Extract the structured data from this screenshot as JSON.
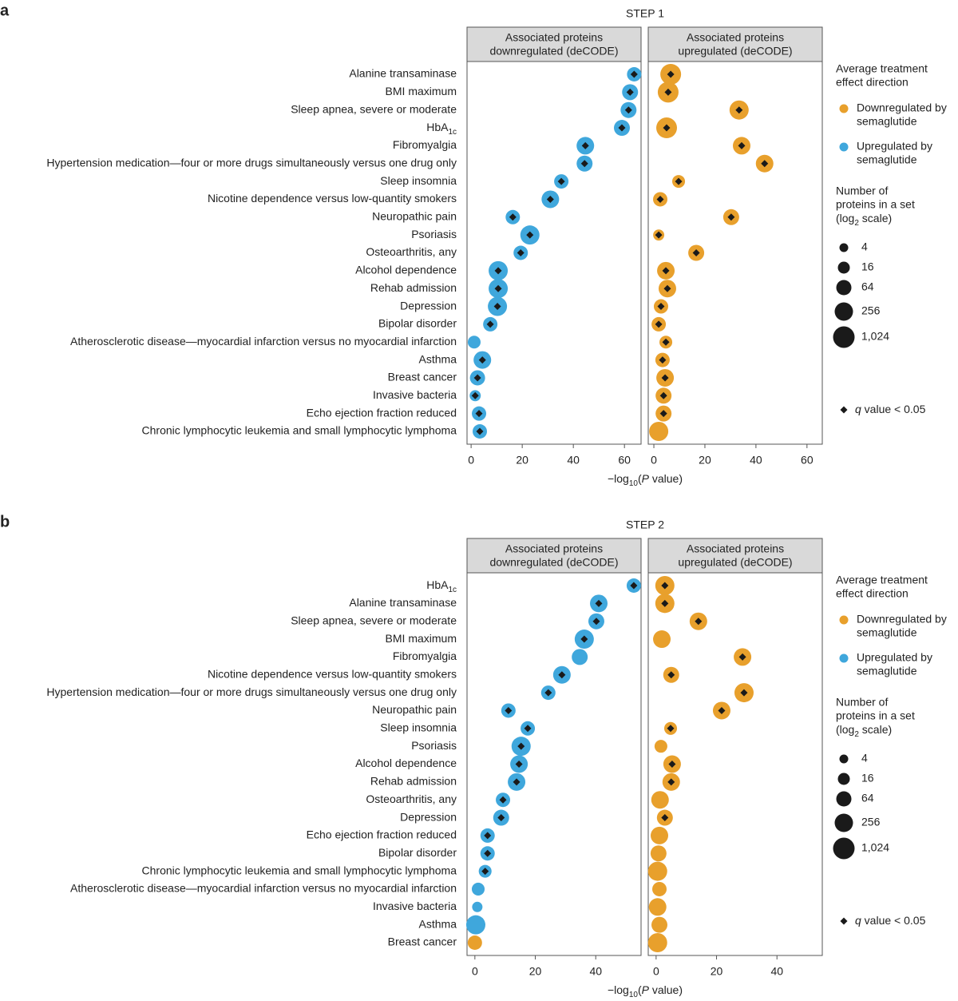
{
  "chart_data": [
    {
      "type": "dot",
      "panel": "a",
      "title": "STEP 1",
      "categories": [
        "Alanine transaminase",
        "BMI maximum",
        "Sleep apnea, severe or moderate",
        [
          "HbA",
          {
            "sub": "1c"
          }
        ],
        "Fibromyalgia",
        "Hypertension medication—four or more drugs simultaneously versus one drug only",
        "Sleep insomnia",
        "Nicotine dependence versus low-quantity smokers",
        "Neuropathic pain",
        "Psoriasis",
        "Osteoarthritis, any",
        "Alcohol dependence",
        "Rehab admission",
        "Depression",
        "Bipolar disorder",
        "Atherosclerotic disease—myocardial infarction versus no myocardial infarction",
        "Asthma",
        "Breast cancer",
        "Invasive bacteria",
        "Echo ejection fraction reduced",
        "Chronic lymphocytic leukemia and small lymphocytic lymphoma"
      ],
      "xlabel": [
        "−log",
        {
          "sub": "10"
        },
        "(",
        {
          "italic": "P"
        },
        " value)"
      ],
      "facets": [
        {
          "title": [
            "Associated proteins",
            "downregulated (deCODE)"
          ],
          "xlim": [
            -1.6,
            66.5
          ],
          "xticks": [
            0,
            20,
            40,
            60
          ],
          "values": [
            63.8,
            62.2,
            61.6,
            59,
            44.7,
            44.4,
            35.3,
            31,
            16.3,
            23,
            19.4,
            10.6,
            10.6,
            10.3,
            7.5,
            1.2,
            4.4,
            2.5,
            1.6,
            3.1,
            3.4
          ],
          "sizes": [
            45,
            90,
            90,
            90,
            181,
            90,
            45,
            181,
            45,
            362,
            45,
            362,
            362,
            362,
            45,
            23,
            181,
            64,
            11,
            45,
            45
          ],
          "colors": [
            "#3fa7dc",
            "#3fa7dc",
            "#3fa7dc",
            "#3fa7dc",
            "#3fa7dc",
            "#3fa7dc",
            "#3fa7dc",
            "#3fa7dc",
            "#3fa7dc",
            "#3fa7dc",
            "#3fa7dc",
            "#3fa7dc",
            "#3fa7dc",
            "#3fa7dc",
            "#3fa7dc",
            "#3fa7dc",
            "#3fa7dc",
            "#3fa7dc",
            "#3fa7dc",
            "#3fa7dc",
            "#3fa7dc"
          ],
          "q_significant": [
            true,
            true,
            true,
            true,
            true,
            true,
            true,
            true,
            true,
            true,
            true,
            true,
            true,
            true,
            true,
            false,
            true,
            true,
            true,
            true,
            true
          ]
        },
        {
          "title": [
            "Associated proteins",
            "upregulated (deCODE)"
          ],
          "xlim": [
            -2.2,
            66
          ],
          "xticks": [
            0,
            20,
            40,
            60
          ],
          "values": [
            6.6,
            5.6,
            33.4,
            5,
            34.4,
            43.4,
            9.7,
            2.5,
            30.3,
            1.9,
            16.6,
            4.7,
            5.3,
            2.8,
            1.9,
            4.7,
            3.4,
            4.4,
            3.8,
            3.8,
            1.9
          ],
          "sizes": [
            724,
            724,
            362,
            724,
            181,
            181,
            23,
            45,
            90,
            11,
            90,
            181,
            181,
            45,
            45,
            23,
            45,
            181,
            90,
            90,
            362
          ],
          "colors": [
            "#e8a02c",
            "#e8a02c",
            "#e8a02c",
            "#e8a02c",
            "#e8a02c",
            "#e8a02c",
            "#e8a02c",
            "#e8a02c",
            "#e8a02c",
            "#e8a02c",
            "#e8a02c",
            "#e8a02c",
            "#e8a02c",
            "#e8a02c",
            "#e8a02c",
            "#e8a02c",
            "#e8a02c",
            "#e8a02c",
            "#e8a02c",
            "#e8a02c",
            "#e8a02c"
          ],
          "q_significant": [
            true,
            true,
            true,
            true,
            true,
            true,
            true,
            true,
            true,
            true,
            true,
            true,
            true,
            true,
            true,
            true,
            true,
            true,
            true,
            true,
            false
          ]
        }
      ],
      "legend": {
        "title": [
          "Average treatment",
          "effect direction"
        ],
        "items": [
          {
            "name": [
              "Downregulated by",
              "semaglutide"
            ],
            "color": "#e8a02c"
          },
          {
            "name": [
              "Upregulated by",
              "semaglutide"
            ],
            "color": "#3fa7dc"
          }
        ],
        "size_title": [
          "Number of",
          "proteins in a set",
          [
            "(log",
            {
              "sub": "2"
            },
            " scale)"
          ]
        ],
        "sizes": [
          4,
          16,
          64,
          256,
          {
            "value": 1024,
            "label": "1,024"
          }
        ],
        "q_label": [
          {
            "italic": "q"
          },
          " value < 0.05"
        ]
      }
    },
    {
      "type": "dot",
      "panel": "b",
      "title": "STEP 2",
      "categories": [
        [
          "HbA",
          {
            "sub": "1c"
          }
        ],
        "Alanine transaminase",
        "Sleep apnea, severe or moderate",
        "BMI maximum",
        "Fibromyalgia",
        "Nicotine dependence versus low-quantity smokers",
        "Hypertension medication—four or more drugs simultaneously versus one drug only",
        "Neuropathic pain",
        "Sleep insomnia",
        "Psoriasis",
        "Alcohol dependence",
        "Rehab admission",
        "Osteoarthritis, any",
        "Depression",
        "Echo ejection fraction reduced",
        "Bipolar disorder",
        "Chronic lymphocytic leukemia and small lymphocytic lymphoma",
        "Atherosclerotic disease—myocardial infarction versus no myocardial infarction",
        "Invasive bacteria",
        "Asthma",
        "Breast cancer"
      ],
      "xlabel": [
        "−log",
        {
          "sub": "10"
        },
        "(",
        {
          "italic": "P"
        },
        " value)"
      ],
      "facets": [
        {
          "title": [
            "Associated proteins",
            "downregulated (deCODE)"
          ],
          "xlim": [
            -2.6,
            55
          ],
          "xticks": [
            0,
            20,
            40
          ],
          "values": [
            52.6,
            41,
            40.2,
            36.2,
            34.7,
            28.8,
            24.3,
            11.1,
            17.5,
            15.3,
            14.6,
            13.8,
            9.3,
            8.7,
            4.2,
            4.2,
            3.4,
            1.1,
            0.8,
            0.3,
            0
          ],
          "sizes": [
            45,
            181,
            90,
            362,
            90,
            181,
            45,
            45,
            45,
            362,
            181,
            181,
            45,
            90,
            45,
            45,
            23,
            23,
            8,
            362,
            45
          ],
          "colors": [
            "#3fa7dc",
            "#3fa7dc",
            "#3fa7dc",
            "#3fa7dc",
            "#3fa7dc",
            "#3fa7dc",
            "#3fa7dc",
            "#3fa7dc",
            "#3fa7dc",
            "#3fa7dc",
            "#3fa7dc",
            "#3fa7dc",
            "#3fa7dc",
            "#3fa7dc",
            "#3fa7dc",
            "#3fa7dc",
            "#3fa7dc",
            "#3fa7dc",
            "#3fa7dc",
            "#3fa7dc",
            "#e8a02c"
          ],
          "q_significant": [
            true,
            true,
            true,
            true,
            false,
            true,
            true,
            true,
            true,
            true,
            true,
            true,
            true,
            true,
            true,
            true,
            true,
            false,
            false,
            false,
            false
          ]
        },
        {
          "title": [
            "Associated proteins",
            "upregulated (deCODE)"
          ],
          "xlim": [
            -2.6,
            55
          ],
          "xticks": [
            0,
            20,
            40
          ],
          "values": [
            2.9,
            2.9,
            14,
            1.9,
            28.6,
            5,
            29.1,
            21.7,
            4.8,
            1.6,
            5.3,
            5,
            1.3,
            2.9,
            1.1,
            0.8,
            0.5,
            1.1,
            0.5,
            1.1,
            0.5
          ],
          "sizes": [
            362,
            362,
            181,
            181,
            181,
            90,
            362,
            181,
            23,
            23,
            181,
            181,
            181,
            90,
            181,
            90,
            362,
            45,
            181,
            90,
            362
          ],
          "colors": [
            "#e8a02c",
            "#e8a02c",
            "#e8a02c",
            "#e8a02c",
            "#e8a02c",
            "#e8a02c",
            "#e8a02c",
            "#e8a02c",
            "#e8a02c",
            "#e8a02c",
            "#e8a02c",
            "#e8a02c",
            "#e8a02c",
            "#e8a02c",
            "#e8a02c",
            "#e8a02c",
            "#e8a02c",
            "#e8a02c",
            "#e8a02c",
            "#e8a02c",
            "#e8a02c"
          ],
          "q_significant": [
            true,
            true,
            true,
            false,
            true,
            true,
            true,
            true,
            true,
            false,
            true,
            true,
            false,
            true,
            false,
            false,
            false,
            false,
            false,
            false,
            false
          ]
        }
      ],
      "legend": {
        "title": [
          "Average treatment",
          "effect direction"
        ],
        "items": [
          {
            "name": [
              "Downregulated by",
              "semaglutide"
            ],
            "color": "#e8a02c"
          },
          {
            "name": [
              "Upregulated by",
              "semaglutide"
            ],
            "color": "#3fa7dc"
          }
        ],
        "size_title": [
          "Number of",
          "proteins in a set",
          [
            "(log",
            {
              "sub": "2"
            },
            " scale)"
          ]
        ],
        "sizes": [
          4,
          16,
          64,
          256,
          {
            "value": 1024,
            "label": "1,024"
          }
        ],
        "q_label": [
          {
            "italic": "q"
          },
          " value < 0.05"
        ]
      }
    }
  ]
}
